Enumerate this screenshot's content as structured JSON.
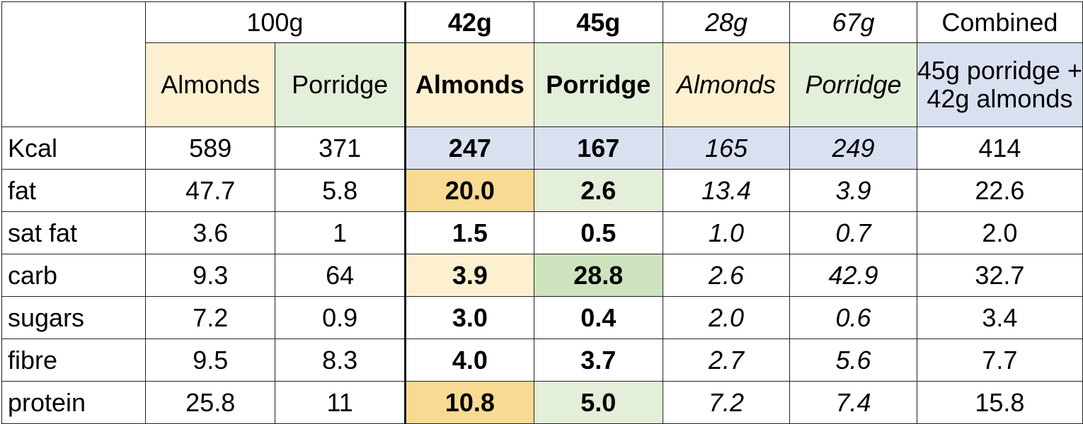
{
  "header": {
    "weight_100g": "100g",
    "weight_42g": "42g",
    "weight_45g": "45g",
    "weight_28g": "28g",
    "weight_67g": "67g",
    "combined": "Combined"
  },
  "columns": {
    "almonds_100": "Almonds",
    "porridge_100": "Porridge",
    "almonds_42": "Almonds",
    "porridge_45": "Porridge",
    "almonds_28": "Almonds",
    "porridge_67": "Porridge",
    "combined_desc_line1": "45g porridge +",
    "combined_desc_line2": "42g almonds"
  },
  "rows": [
    {
      "label": "Kcal",
      "values": [
        "589",
        "371",
        "247",
        "167",
        "165",
        "249",
        "414"
      ]
    },
    {
      "label": "fat",
      "values": [
        "47.7",
        "5.8",
        "20.0",
        "2.6",
        "13.4",
        "3.9",
        "22.6"
      ]
    },
    {
      "label": "sat fat",
      "values": [
        "3.6",
        "1",
        "1.5",
        "0.5",
        "1.0",
        "0.7",
        "2.0"
      ]
    },
    {
      "label": "carb",
      "values": [
        "9.3",
        "64",
        "3.9",
        "28.8",
        "2.6",
        "42.9",
        "32.7"
      ]
    },
    {
      "label": "sugars",
      "values": [
        "7.2",
        "0.9",
        "3.0",
        "0.4",
        "2.0",
        "0.6",
        "3.4"
      ]
    },
    {
      "label": "fibre",
      "values": [
        "9.5",
        "8.3",
        "4.0",
        "3.7",
        "2.7",
        "5.6",
        "7.7"
      ]
    },
    {
      "label": "protein",
      "values": [
        "25.8",
        "11",
        "10.8",
        "5.0",
        "7.2",
        "7.4",
        "15.8"
      ]
    }
  ],
  "colors": {
    "almond_yellow": "#fbe8b8",
    "porridge_green": "#e3efd9",
    "kcal_blue": "#d9e1f1"
  }
}
